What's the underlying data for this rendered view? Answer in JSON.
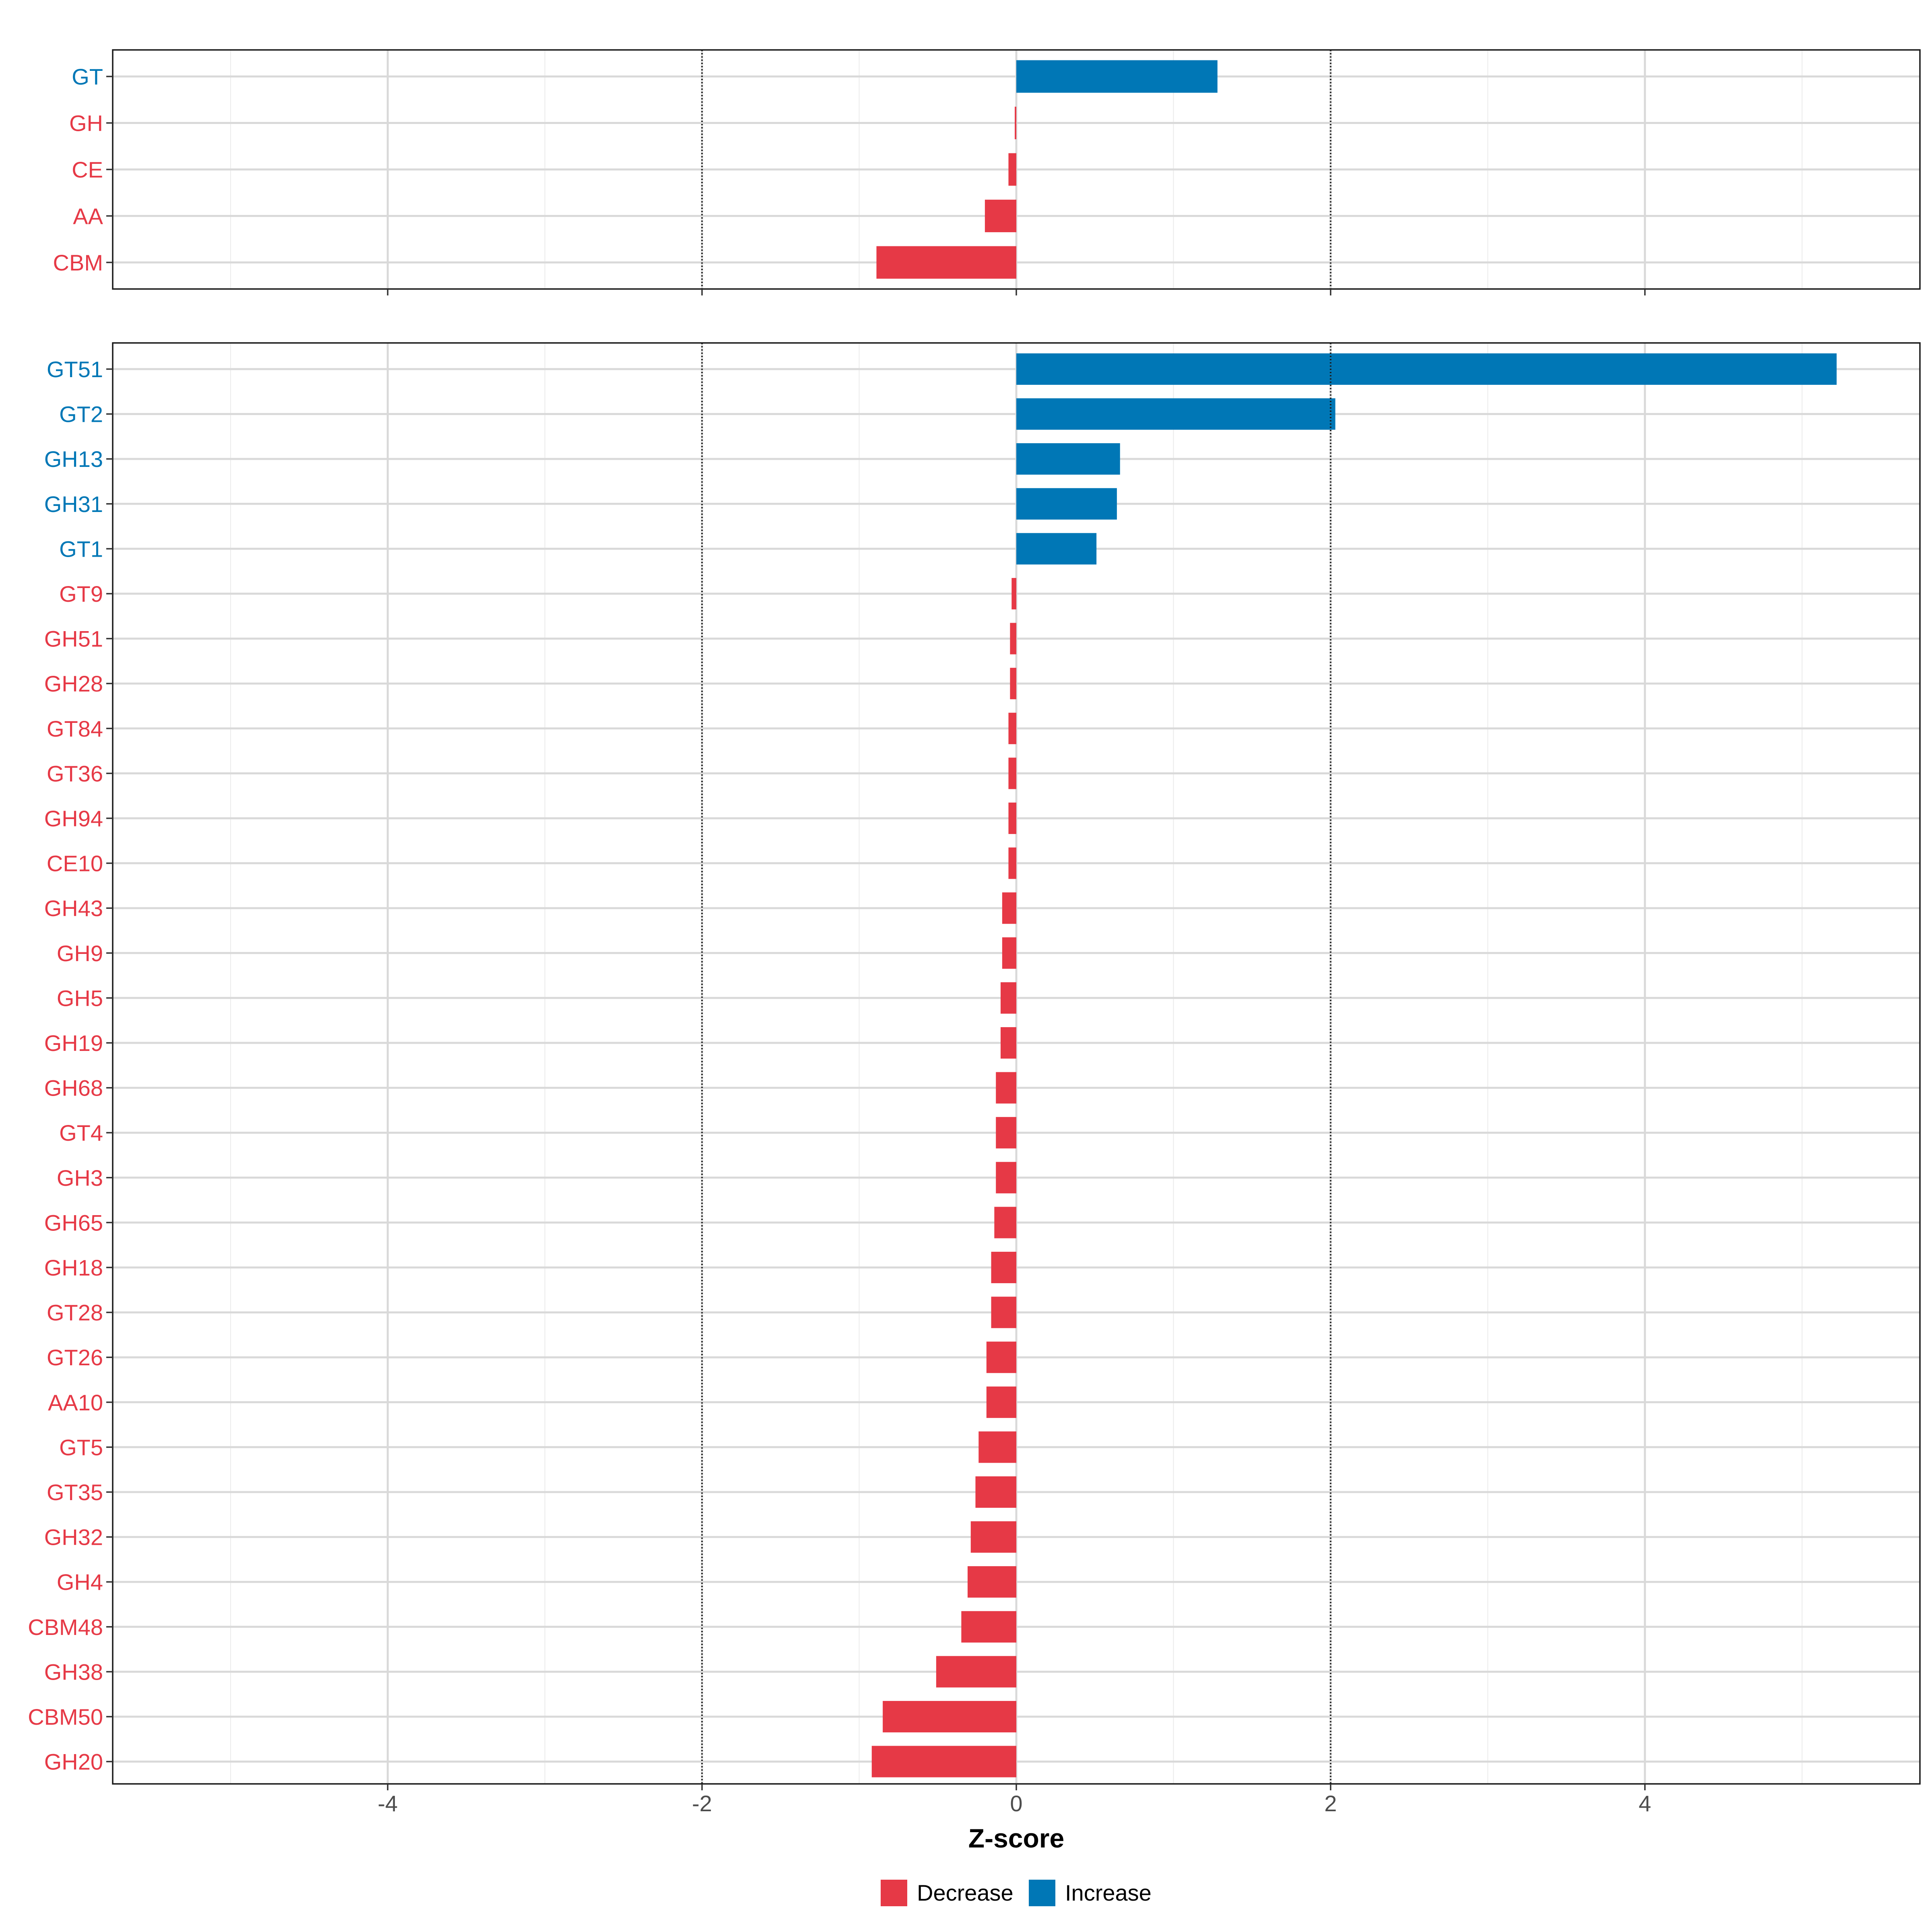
{
  "chart_data": {
    "type": "bar",
    "orientation": "horizontal",
    "xlabel": "Z-score",
    "xlim": [
      -5.75,
      5.75
    ],
    "xticks": [
      -4,
      -2,
      0,
      2,
      4
    ],
    "xtick_labels": [
      "-4",
      "-2",
      "0",
      "2",
      "4"
    ],
    "reference_lines": [
      -2,
      2
    ],
    "grid": true,
    "legend_position": "bottom",
    "colors": {
      "Decrease": "#E63946",
      "Increase": "#0077B6"
    },
    "legend": [
      {
        "label": "Decrease",
        "color": "#E63946"
      },
      {
        "label": "Increase",
        "color": "#0077B6"
      }
    ],
    "panels": [
      {
        "name": "class",
        "categories": [
          "GT",
          "GH",
          "CE",
          "AA",
          "CBM"
        ],
        "values": [
          1.28,
          -0.01,
          -0.05,
          -0.2,
          -0.89
        ],
        "groups": [
          "Increase",
          "Decrease",
          "Decrease",
          "Decrease",
          "Decrease"
        ]
      },
      {
        "name": "family",
        "categories": [
          "GT51",
          "GT2",
          "GH13",
          "GH31",
          "GT1",
          "GT9",
          "GH51",
          "GH28",
          "GT84",
          "GT36",
          "GH94",
          "CE10",
          "GH43",
          "GH9",
          "GH5",
          "GH19",
          "GH68",
          "GT4",
          "GH3",
          "GH65",
          "GH18",
          "GT28",
          "GT26",
          "AA10",
          "GT5",
          "GT35",
          "GH32",
          "GH4",
          "CBM48",
          "GH38",
          "CBM50",
          "GH20"
        ],
        "values": [
          5.22,
          2.03,
          0.66,
          0.64,
          0.51,
          -0.03,
          -0.04,
          -0.04,
          -0.05,
          -0.05,
          -0.05,
          -0.05,
          -0.09,
          -0.09,
          -0.1,
          -0.1,
          -0.13,
          -0.13,
          -0.13,
          -0.14,
          -0.16,
          -0.16,
          -0.19,
          -0.19,
          -0.24,
          -0.26,
          -0.29,
          -0.31,
          -0.35,
          -0.51,
          -0.85,
          -0.92
        ],
        "groups": [
          "Increase",
          "Increase",
          "Increase",
          "Increase",
          "Increase",
          "Decrease",
          "Decrease",
          "Decrease",
          "Decrease",
          "Decrease",
          "Decrease",
          "Decrease",
          "Decrease",
          "Decrease",
          "Decrease",
          "Decrease",
          "Decrease",
          "Decrease",
          "Decrease",
          "Decrease",
          "Decrease",
          "Decrease",
          "Decrease",
          "Decrease",
          "Decrease",
          "Decrease",
          "Decrease",
          "Decrease",
          "Decrease",
          "Decrease",
          "Decrease",
          "Decrease"
        ]
      }
    ]
  }
}
